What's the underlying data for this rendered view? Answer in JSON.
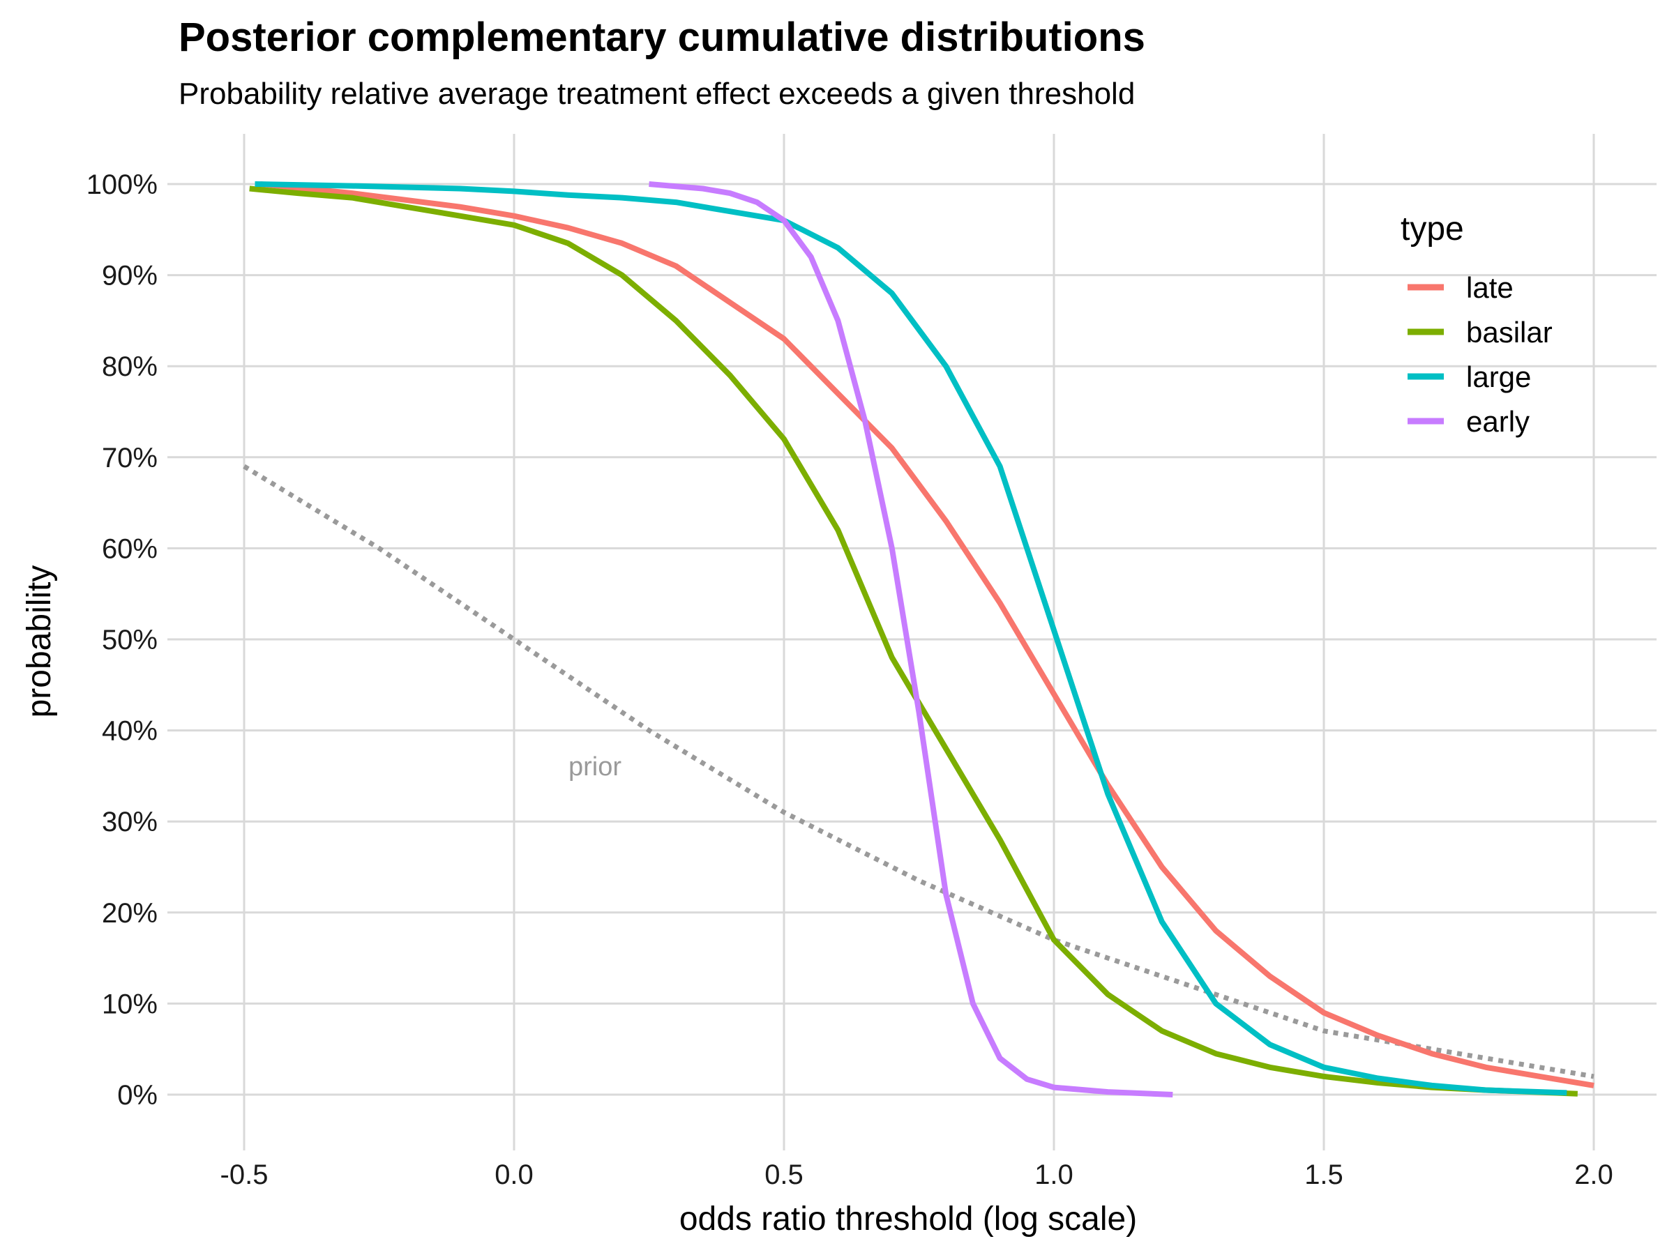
{
  "chart_data": {
    "type": "line",
    "title": "Posterior complementary cumulative distributions",
    "subtitle": "Probability relative average treatment effect exceeds a given threshold",
    "xlabel": "odds ratio threshold (log scale)",
    "ylabel": "probability",
    "xlim": [
      -0.65,
      2.12
    ],
    "ylim": [
      -0.06,
      1.05
    ],
    "x_ticks": [
      -0.5,
      0.0,
      0.5,
      1.0,
      1.5,
      2.0
    ],
    "x_tick_labels": [
      "-0.5",
      "0.0",
      "0.5",
      "1.0",
      "1.5",
      "2.0"
    ],
    "y_ticks": [
      0,
      0.1,
      0.2,
      0.3,
      0.4,
      0.5,
      0.6,
      0.7,
      0.8,
      0.9,
      1.0
    ],
    "y_tick_labels": [
      "0%",
      "10%",
      "20%",
      "30%",
      "40%",
      "50%",
      "60%",
      "70%",
      "80%",
      "90%",
      "100%"
    ],
    "grid": true,
    "legend": {
      "title": "type",
      "position": "top-right"
    },
    "series": [
      {
        "name": "late",
        "color": "#F8766D",
        "x": [
          -0.47,
          -0.3,
          -0.1,
          0.0,
          0.1,
          0.2,
          0.3,
          0.4,
          0.5,
          0.6,
          0.7,
          0.8,
          0.9,
          1.0,
          1.1,
          1.2,
          1.3,
          1.4,
          1.5,
          1.6,
          1.7,
          1.8,
          1.9,
          2.0
        ],
        "y": [
          1.0,
          0.99,
          0.975,
          0.965,
          0.952,
          0.935,
          0.91,
          0.87,
          0.83,
          0.77,
          0.71,
          0.63,
          0.54,
          0.44,
          0.34,
          0.25,
          0.18,
          0.13,
          0.09,
          0.065,
          0.045,
          0.03,
          0.02,
          0.01
        ]
      },
      {
        "name": "basilar",
        "color": "#7CAE00",
        "x": [
          -0.49,
          -0.4,
          -0.3,
          -0.2,
          -0.1,
          0.0,
          0.1,
          0.2,
          0.3,
          0.4,
          0.5,
          0.6,
          0.7,
          0.8,
          0.9,
          1.0,
          1.1,
          1.2,
          1.3,
          1.4,
          1.5,
          1.6,
          1.7,
          1.8,
          1.97
        ],
        "y": [
          0.995,
          0.99,
          0.985,
          0.975,
          0.965,
          0.955,
          0.935,
          0.9,
          0.85,
          0.79,
          0.72,
          0.62,
          0.48,
          0.38,
          0.28,
          0.17,
          0.11,
          0.07,
          0.045,
          0.03,
          0.02,
          0.013,
          0.008,
          0.005,
          0.001
        ]
      },
      {
        "name": "large",
        "color": "#00BFC4",
        "x": [
          -0.48,
          -0.3,
          -0.1,
          0.0,
          0.1,
          0.2,
          0.3,
          0.4,
          0.5,
          0.6,
          0.7,
          0.8,
          0.9,
          1.0,
          1.05,
          1.1,
          1.2,
          1.3,
          1.4,
          1.5,
          1.6,
          1.7,
          1.8,
          1.95
        ],
        "y": [
          1.0,
          0.998,
          0.995,
          0.992,
          0.988,
          0.985,
          0.98,
          0.97,
          0.96,
          0.93,
          0.88,
          0.8,
          0.69,
          0.51,
          0.42,
          0.33,
          0.19,
          0.1,
          0.055,
          0.03,
          0.018,
          0.01,
          0.005,
          0.002
        ]
      },
      {
        "name": "early",
        "color": "#C77CFF",
        "x": [
          0.25,
          0.35,
          0.4,
          0.45,
          0.5,
          0.55,
          0.6,
          0.65,
          0.7,
          0.75,
          0.8,
          0.85,
          0.9,
          0.95,
          1.0,
          1.1,
          1.22
        ],
        "y": [
          1.0,
          0.995,
          0.99,
          0.98,
          0.96,
          0.92,
          0.85,
          0.74,
          0.6,
          0.42,
          0.22,
          0.1,
          0.04,
          0.017,
          0.008,
          0.003,
          0.0
        ]
      }
    ],
    "prior": {
      "label": "prior",
      "color": "#9a9a9a",
      "x": [
        -0.5,
        -0.25,
        0.0,
        0.25,
        0.5,
        0.75,
        1.0,
        1.25,
        1.5,
        1.75,
        2.0
      ],
      "y": [
        0.69,
        0.6,
        0.5,
        0.4,
        0.31,
        0.235,
        0.17,
        0.12,
        0.07,
        0.045,
        0.02
      ]
    }
  }
}
